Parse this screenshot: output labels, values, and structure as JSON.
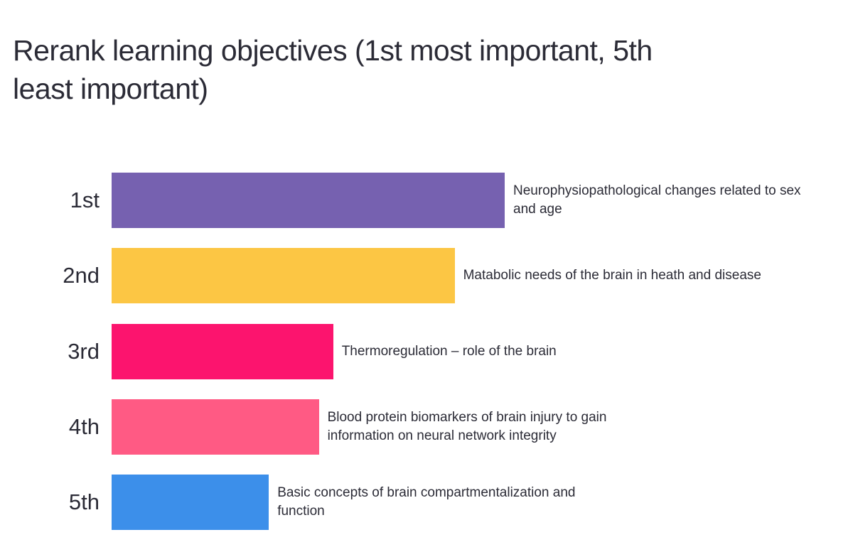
{
  "chart_data": {
    "type": "bar",
    "orientation": "horizontal",
    "title": "Rerank learning objectives (1st most important, 5th least important)",
    "categories": [
      "1st",
      "2nd",
      "3rd",
      "4th",
      "5th"
    ],
    "labels": [
      "Neurophysiopathological changes related to sex and age",
      "Matabolic needs of the brain in heath and disease",
      "Thermoregulation – role of the brain",
      "Blood protein biomarkers of brain injury to gain information on neural network integrity",
      "Basic concepts of brain compartmentalization and function"
    ],
    "values": [
      55,
      48,
      31,
      29,
      22
    ],
    "colors": [
      "#7661b0",
      "#fcc644",
      "#fc146e",
      "#ff5a84",
      "#3c8fea"
    ]
  }
}
